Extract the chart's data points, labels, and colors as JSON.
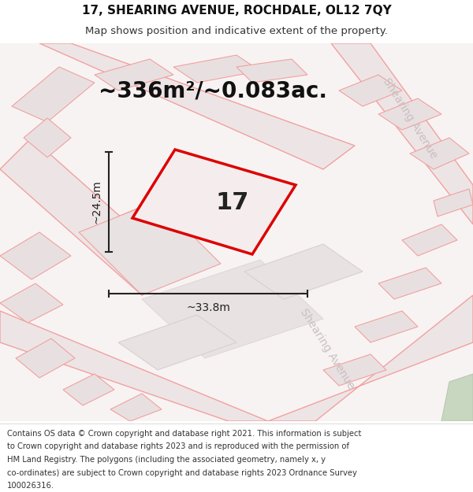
{
  "title_line1": "17, SHEARING AVENUE, ROCHDALE, OL12 7QY",
  "title_line2": "Map shows position and indicative extent of the property.",
  "area_text": "~336m²/~0.083ac.",
  "number_label": "17",
  "dim_width": "~33.8m",
  "dim_height": "~24.5m",
  "footer_lines": [
    "Contains OS data © Crown copyright and database right 2021. This information is subject",
    "to Crown copyright and database rights 2023 and is reproduced with the permission of",
    "HM Land Registry. The polygons (including the associated geometry, namely x, y",
    "co-ordinates) are subject to Crown copyright and database rights 2023 Ordnance Survey",
    "100026316."
  ],
  "map_bg": "#f8f3f3",
  "road_color": "#f2a0a0",
  "block_color": "#e8e0e0",
  "plot_outline_color": "#dd0000",
  "plot_fill_color": "#f5eded",
  "dim_line_color": "#222222",
  "title_fontsize": 11,
  "subtitle_fontsize": 9.5,
  "area_fontsize": 20,
  "number_fontsize": 22,
  "dim_fontsize": 10,
  "footer_fontsize": 7.2,
  "street_label_color": "#c8c0c0",
  "street_label_fontsize": 10
}
